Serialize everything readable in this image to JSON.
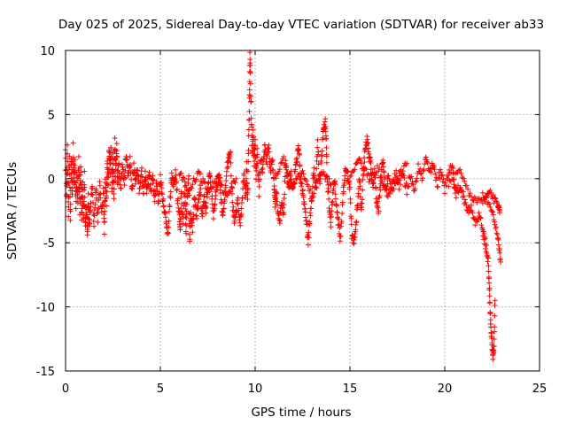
{
  "chart_data": {
    "type": "scatter",
    "title": "Day 025 of 2025, Sidereal Day-to-day VTEC variation (SDTVAR) for receiver ab33",
    "xlabel": "GPS time / hours",
    "ylabel": "SDTVAR / TECUs",
    "xlim": [
      0,
      25
    ],
    "ylim": [
      -15,
      10
    ],
    "xticks": [
      0,
      5,
      10,
      15,
      20,
      25
    ],
    "yticks": [
      10,
      5,
      0,
      -5,
      -10,
      -15
    ],
    "grid": true,
    "marker": "+",
    "color": "#ff0000",
    "series": [
      {
        "name": "SDTVAR",
        "trace": [
          [
            0.0,
            2.2
          ],
          [
            0.05,
            -1.5
          ],
          [
            0.1,
            2.5
          ],
          [
            0.15,
            -2.8
          ],
          [
            0.2,
            2.0
          ],
          [
            0.25,
            -3.2
          ],
          [
            0.3,
            1.5
          ],
          [
            0.35,
            -1.0
          ],
          [
            0.4,
            2.4
          ],
          [
            0.45,
            -0.5
          ],
          [
            0.5,
            1.2
          ],
          [
            0.55,
            -2.0
          ],
          [
            0.6,
            0.5
          ],
          [
            0.65,
            -1.8
          ],
          [
            0.7,
            1.5
          ],
          [
            0.75,
            -2.5
          ],
          [
            0.8,
            1.0
          ],
          [
            0.85,
            -3.0
          ],
          [
            0.9,
            0.0
          ],
          [
            0.95,
            -3.5
          ],
          [
            1.0,
            0.3
          ],
          [
            1.05,
            -4.0
          ],
          [
            1.1,
            -2.0
          ],
          [
            1.15,
            -4.3
          ],
          [
            1.2,
            -1.5
          ],
          [
            1.25,
            -3.8
          ],
          [
            1.3,
            -2.5
          ],
          [
            1.4,
            -0.5
          ],
          [
            1.5,
            -3.5
          ],
          [
            1.6,
            -1.0
          ],
          [
            1.7,
            -3.0
          ],
          [
            1.8,
            -0.5
          ],
          [
            1.9,
            -2.5
          ],
          [
            2.0,
            -1.0
          ],
          [
            2.05,
            -4.0
          ],
          [
            2.1,
            0.0
          ],
          [
            2.15,
            -2.0
          ],
          [
            2.2,
            1.5
          ],
          [
            2.25,
            -0.8
          ],
          [
            2.3,
            2.3
          ],
          [
            2.35,
            0.5
          ],
          [
            2.4,
            2.5
          ],
          [
            2.45,
            -1.0
          ],
          [
            2.5,
            1.8
          ],
          [
            2.55,
            -1.5
          ],
          [
            2.6,
            2.8
          ],
          [
            2.65,
            0.5
          ],
          [
            2.7,
            2.5
          ],
          [
            2.75,
            -0.5
          ],
          [
            2.8,
            1.5
          ],
          [
            2.9,
            -1.0
          ],
          [
            3.0,
            1.2
          ],
          [
            3.1,
            -0.5
          ],
          [
            3.2,
            2.0
          ],
          [
            3.3,
            0.2
          ],
          [
            3.4,
            1.5
          ],
          [
            3.5,
            -0.8
          ],
          [
            3.6,
            1.0
          ],
          [
            3.7,
            -0.3
          ],
          [
            3.8,
            0.6
          ],
          [
            3.9,
            -1.0
          ],
          [
            4.0,
            0.8
          ],
          [
            4.1,
            -1.2
          ],
          [
            4.2,
            0.5
          ],
          [
            4.3,
            -1.0
          ],
          [
            4.4,
            0.3
          ],
          [
            4.5,
            -0.8
          ],
          [
            4.6,
            0.0
          ],
          [
            4.7,
            -1.5
          ],
          [
            4.8,
            -0.5
          ],
          [
            4.9,
            -1.8
          ],
          [
            5.0,
            0.2
          ],
          [
            5.1,
            -1.2
          ],
          [
            5.2,
            -2.5
          ],
          [
            5.3,
            -3.2
          ],
          [
            5.4,
            -4.5
          ],
          [
            5.5,
            -2.0
          ],
          [
            5.6,
            0.3
          ],
          [
            5.7,
            -0.5
          ],
          [
            5.8,
            0.5
          ],
          [
            5.9,
            -1.5
          ],
          [
            6.0,
            -2.5
          ],
          [
            6.05,
            -4.0
          ],
          [
            6.1,
            -1.0
          ],
          [
            6.2,
            -3.5
          ],
          [
            6.3,
            -0.5
          ],
          [
            6.35,
            -4.5
          ],
          [
            6.4,
            -2.0
          ],
          [
            6.5,
            0.0
          ],
          [
            6.55,
            -4.8
          ],
          [
            6.6,
            -2.5
          ],
          [
            6.7,
            -3.8
          ],
          [
            6.8,
            -1.5
          ],
          [
            6.9,
            -3.0
          ],
          [
            7.0,
            -2.0
          ],
          [
            7.1,
            -0.8
          ],
          [
            7.2,
            -3.0
          ],
          [
            7.3,
            -1.5
          ],
          [
            7.4,
            -2.5
          ],
          [
            7.5,
            -0.5
          ],
          [
            7.6,
            0.5
          ],
          [
            7.7,
            -1.0
          ],
          [
            7.8,
            -3.0
          ],
          [
            7.9,
            -1.5
          ],
          [
            8.0,
            -0.5
          ],
          [
            8.1,
            0.5
          ],
          [
            8.2,
            -1.8
          ],
          [
            8.3,
            -2.8
          ],
          [
            8.4,
            -1.5
          ],
          [
            8.5,
            0.8
          ],
          [
            8.6,
            1.5
          ],
          [
            8.7,
            1.8
          ],
          [
            8.8,
            -2.0
          ],
          [
            8.9,
            -3.2
          ],
          [
            9.0,
            -2.5
          ],
          [
            9.1,
            -1.8
          ],
          [
            9.2,
            -3.5
          ],
          [
            9.3,
            -2.2
          ],
          [
            9.4,
            0.5
          ],
          [
            9.5,
            -1.5
          ],
          [
            9.55,
            1.0
          ],
          [
            9.6,
            -2.0
          ],
          [
            9.65,
            2.5
          ],
          [
            9.7,
            6.0
          ],
          [
            9.72,
            9.8
          ],
          [
            9.75,
            8.0
          ],
          [
            9.8,
            4.5
          ],
          [
            9.85,
            2.0
          ],
          [
            9.9,
            3.5
          ],
          [
            9.95,
            1.0
          ],
          [
            10.0,
            3.0
          ],
          [
            10.05,
            0.0
          ],
          [
            10.1,
            2.0
          ],
          [
            10.2,
            -1.0
          ],
          [
            10.3,
            1.5
          ],
          [
            10.4,
            0.5
          ],
          [
            10.5,
            2.5
          ],
          [
            10.6,
            1.0
          ],
          [
            10.7,
            2.8
          ],
          [
            10.8,
            0.5
          ],
          [
            10.9,
            1.5
          ],
          [
            11.0,
            -0.5
          ],
          [
            11.05,
            -2.0
          ],
          [
            11.1,
            -1.0
          ],
          [
            11.2,
            -2.5
          ],
          [
            11.3,
            -3.2
          ],
          [
            11.4,
            -1.5
          ],
          [
            11.5,
            -3.0
          ],
          [
            11.6,
            1.2
          ],
          [
            11.7,
            0.0
          ],
          [
            11.8,
            -0.5
          ],
          [
            11.9,
            0.2
          ],
          [
            12.0,
            -1.0
          ],
          [
            12.1,
            0.5
          ],
          [
            12.2,
            1.5
          ],
          [
            12.3,
            2.5
          ],
          [
            12.4,
            0.0
          ],
          [
            12.5,
            -1.0
          ],
          [
            12.6,
            -2.0
          ],
          [
            12.7,
            -3.5
          ],
          [
            12.8,
            -4.8
          ],
          [
            12.9,
            -3.0
          ],
          [
            13.0,
            -1.0
          ],
          [
            13.1,
            0.5
          ],
          [
            13.2,
            -0.5
          ],
          [
            13.3,
            2.8
          ],
          [
            13.4,
            -0.5
          ],
          [
            13.5,
            1.5
          ],
          [
            13.6,
            3.8
          ],
          [
            13.7,
            4.5
          ],
          [
            13.75,
            3.0
          ],
          [
            13.8,
            0.0
          ],
          [
            13.9,
            -2.0
          ],
          [
            14.0,
            -3.5
          ],
          [
            14.1,
            -1.0
          ],
          [
            14.2,
            0.0
          ],
          [
            14.3,
            -2.5
          ],
          [
            14.4,
            -3.5
          ],
          [
            14.5,
            -4.8
          ],
          [
            14.6,
            -2.0
          ],
          [
            14.7,
            0.0
          ],
          [
            14.8,
            1.0
          ],
          [
            14.9,
            0.0
          ],
          [
            15.0,
            -1.0
          ],
          [
            15.1,
            -4.5
          ],
          [
            15.2,
            -5.0
          ],
          [
            15.3,
            -4.0
          ],
          [
            15.4,
            -2.0
          ],
          [
            15.5,
            0.0
          ],
          [
            15.6,
            -2.5
          ],
          [
            15.7,
            0.0
          ],
          [
            15.8,
            2.5
          ],
          [
            15.9,
            3.0
          ],
          [
            16.0,
            2.2
          ],
          [
            16.1,
            1.0
          ],
          [
            16.2,
            -0.5
          ],
          [
            16.3,
            0.5
          ],
          [
            16.4,
            -1.5
          ],
          [
            16.5,
            -2.5
          ],
          [
            16.6,
            -0.5
          ],
          [
            16.7,
            1.5
          ],
          [
            16.8,
            0.5
          ],
          [
            16.9,
            -1.0
          ],
          [
            17.0,
            0.0
          ],
          [
            17.2,
            -0.8
          ],
          [
            17.4,
            0.5
          ],
          [
            17.6,
            -0.5
          ],
          [
            17.8,
            0.5
          ],
          [
            18.0,
            -1.0
          ],
          [
            18.2,
            0.3
          ],
          [
            18.4,
            -0.8
          ],
          [
            18.6,
            1.0
          ],
          [
            18.8,
            0.0
          ],
          [
            19.0,
            1.5
          ],
          [
            19.2,
            0.5
          ],
          [
            19.4,
            1.0
          ],
          [
            19.6,
            -0.5
          ],
          [
            19.8,
            0.8
          ],
          [
            20.0,
            -0.8
          ],
          [
            20.2,
            0.5
          ],
          [
            20.4,
            1.0
          ],
          [
            20.5,
            -0.3
          ],
          [
            20.6,
            -1.2
          ],
          [
            20.8,
            -0.5
          ],
          [
            21.0,
            -1.5
          ],
          [
            21.2,
            -2.5
          ],
          [
            21.4,
            -2.0
          ],
          [
            21.6,
            -3.5
          ],
          [
            21.8,
            -2.8
          ],
          [
            22.0,
            -4.0
          ],
          [
            22.1,
            -4.8
          ],
          [
            22.2,
            -5.5
          ],
          [
            22.3,
            -6.5
          ],
          [
            22.35,
            -8.5
          ],
          [
            22.4,
            -10.5
          ],
          [
            22.45,
            -12.0
          ],
          [
            22.5,
            -13.0
          ],
          [
            22.55,
            -14.0
          ],
          [
            22.6,
            -13.0
          ],
          [
            22.65,
            -9.5
          ]
        ],
        "branches": [
          [
            [
              20.2,
              -0.5
            ],
            [
              20.8,
              0.5
            ],
            [
              21.4,
              -1.5
            ],
            [
              22.0,
              -1.8
            ],
            [
              22.4,
              -1.0
            ],
            [
              22.8,
              -2.2
            ],
            [
              22.9,
              -2.5
            ]
          ],
          [
            [
              22.0,
              -1.2
            ],
            [
              22.5,
              -2.5
            ],
            [
              22.8,
              -4.5
            ],
            [
              22.95,
              -6.5
            ]
          ],
          [
            [
              15.0,
              0.3
            ],
            [
              15.5,
              1.5
            ],
            [
              16.0,
              0.0
            ],
            [
              16.5,
              0.8
            ],
            [
              17.0,
              -1.5
            ],
            [
              17.5,
              0.0
            ],
            [
              18.0,
              1.2
            ]
          ],
          [
            [
              11.0,
              0.0
            ],
            [
              11.5,
              1.5
            ],
            [
              12.0,
              -0.5
            ],
            [
              12.5,
              0.5
            ],
            [
              13.0,
              -1.5
            ],
            [
              13.5,
              0.5
            ],
            [
              14.0,
              -0.5
            ]
          ],
          [
            [
              6.0,
              0.5
            ],
            [
              6.5,
              -1.0
            ],
            [
              7.0,
              0.5
            ],
            [
              7.5,
              -1.0
            ],
            [
              8.0,
              0.0
            ],
            [
              8.5,
              -1.5
            ],
            [
              9.0,
              0.0
            ]
          ]
        ]
      }
    ]
  }
}
